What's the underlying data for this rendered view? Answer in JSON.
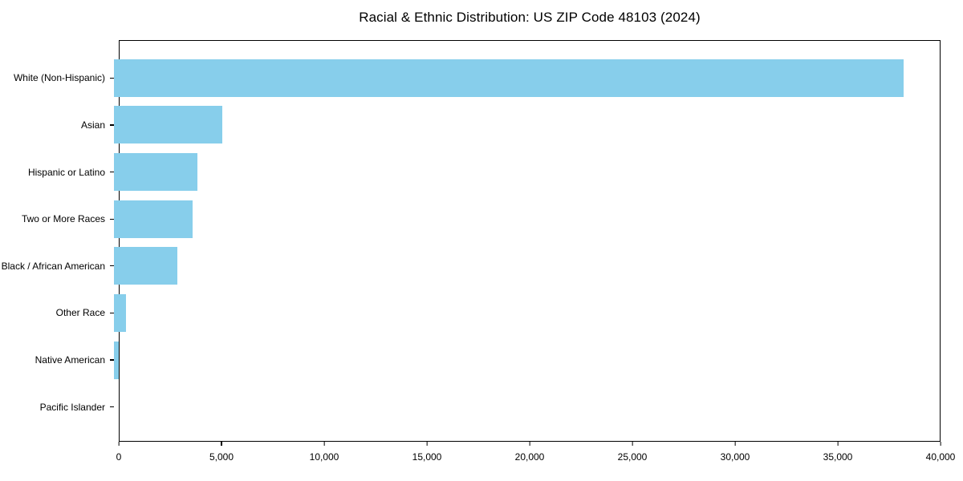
{
  "colors": {
    "bar": "#87CEEB",
    "axis": "#000000",
    "background": "#FFFFFF",
    "text": "#000000"
  },
  "chart_data": {
    "type": "bar",
    "orientation": "horizontal",
    "title": "Racial & Ethnic Distribution: US ZIP Code 48103 (2024)",
    "categories": [
      "White (Non-Hispanic)",
      "Asian",
      "Hispanic or Latino",
      "Two or More Races",
      "Black / African American",
      "Other Race",
      "Native American",
      "Pacific Islander"
    ],
    "values": [
      38200,
      5250,
      4030,
      3800,
      3050,
      590,
      250,
      0
    ],
    "xlabel": "",
    "ylabel": "",
    "xlim": [
      0,
      40000
    ],
    "x_ticks": [
      0,
      5000,
      10000,
      15000,
      20000,
      25000,
      30000,
      35000,
      40000
    ],
    "x_tick_labels": [
      "0",
      "5,000",
      "10,000",
      "15,000",
      "20,000",
      "25,000",
      "30,000",
      "35,000",
      "40,000"
    ],
    "grid": false,
    "legend": null,
    "bar_color_name": "skyblue"
  }
}
